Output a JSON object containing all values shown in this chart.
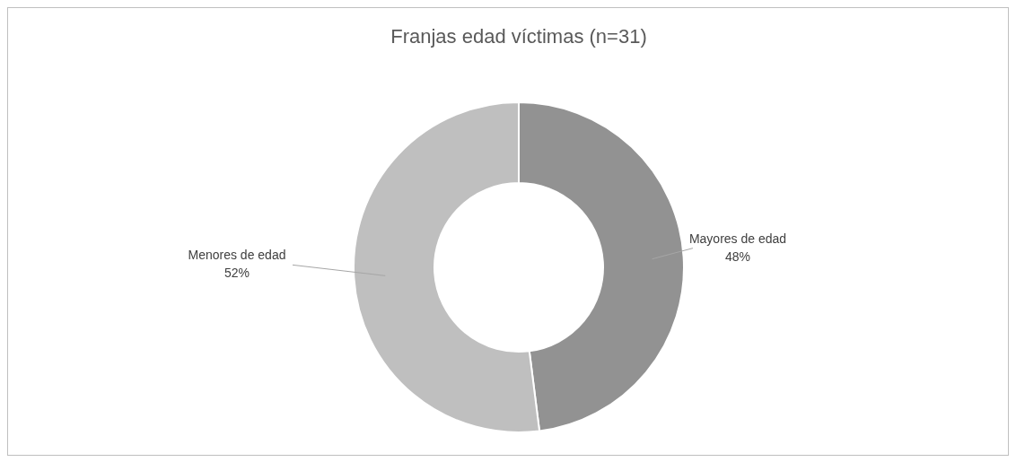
{
  "chart_data": {
    "type": "donut",
    "title": "Franjas edad víctimas (n=31)",
    "categories": [
      "Mayores de edad",
      "Menores de edad"
    ],
    "values": [
      48,
      52
    ],
    "colors": [
      "#929292",
      "#bfbfbf"
    ],
    "value_labels": [
      "48%",
      "52%"
    ]
  }
}
